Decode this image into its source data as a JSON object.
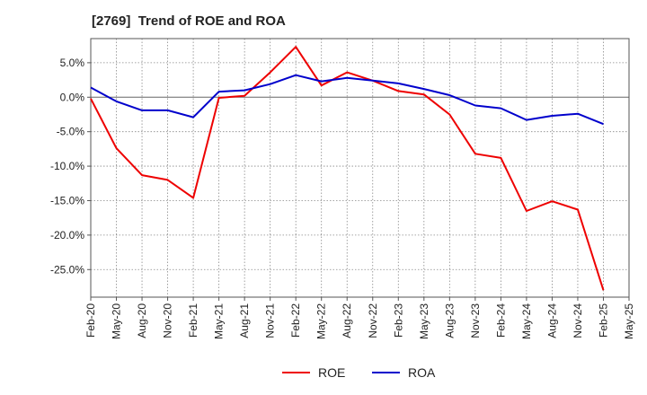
{
  "chart_data": {
    "type": "line",
    "title": "[2769]  Trend of ROE and ROA",
    "xlabel": "",
    "ylabel": "",
    "categories": [
      "Feb-20",
      "May-20",
      "Aug-20",
      "Nov-20",
      "Feb-21",
      "May-21",
      "Aug-21",
      "Nov-21",
      "Feb-22",
      "May-22",
      "Aug-22",
      "Nov-22",
      "Feb-23",
      "May-23",
      "Aug-23",
      "Nov-23",
      "Feb-24",
      "May-24",
      "Aug-24",
      "Nov-24",
      "Feb-25",
      "May-25"
    ],
    "ylim": [
      -29,
      8.5
    ],
    "yticks": [
      5,
      0,
      -5,
      -10,
      -15,
      -20,
      -25
    ],
    "ytick_labels": [
      "5.0%",
      "0.0%",
      "-5.0%",
      "-10.0%",
      "-15.0%",
      "-20.0%",
      "-25.0%"
    ],
    "grid": true,
    "legend_position": "bottom-center",
    "series": [
      {
        "name": "ROE",
        "color": "#ee0000",
        "values": [
          -0.2,
          -7.4,
          -11.3,
          -12.0,
          -14.6,
          -0.1,
          0.2,
          3.6,
          7.3,
          1.7,
          3.6,
          2.4,
          0.9,
          0.4,
          -2.5,
          -8.2,
          -8.8,
          -16.5,
          -15.1,
          -16.3,
          -28.0,
          null
        ]
      },
      {
        "name": "ROA",
        "color": "#0000cc",
        "values": [
          1.4,
          -0.6,
          -1.9,
          -1.9,
          -2.9,
          0.8,
          1.0,
          1.9,
          3.2,
          2.3,
          2.8,
          2.4,
          2.0,
          1.2,
          0.3,
          -1.2,
          -1.6,
          -3.3,
          -2.7,
          -2.4,
          -3.9,
          null
        ]
      }
    ]
  }
}
